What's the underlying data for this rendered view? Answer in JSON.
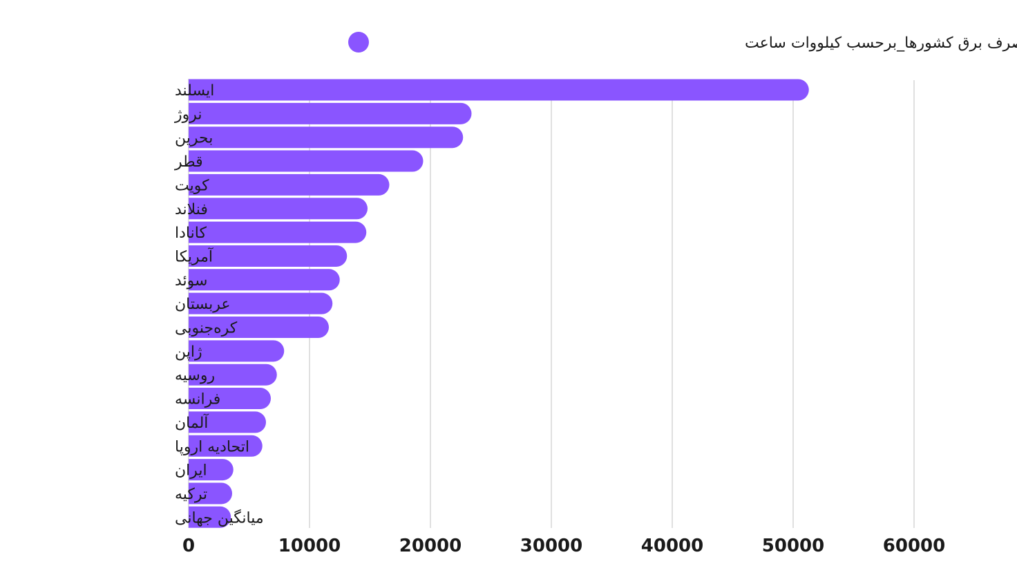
{
  "chart_data": {
    "type": "bar",
    "orientation": "horizontal",
    "categories": [
      "ایسلند",
      "نروژ",
      "بحرین",
      "قطر",
      "کویت",
      "فنلاند",
      "کانادا",
      "آمریکا",
      "سوئد",
      "عربستان",
      "کره‌جنوبی",
      "ژاپن",
      "روسیه",
      "فرانسه",
      "آلمان",
      "اتحادیه اروپا",
      "ایران",
      "ترکیه",
      "میانگین جهانی"
    ],
    "series": [
      {
        "name": "سرانه مصرف برق کشورها_برحسب کیلووات ساعت",
        "color": "#8A55FF",
        "values": [
          51300,
          23400,
          22700,
          19400,
          16600,
          14800,
          14700,
          13100,
          12500,
          11900,
          11600,
          7900,
          7300,
          6800,
          6400,
          6100,
          3700,
          3600,
          3500
        ]
      }
    ],
    "xlim": [
      0,
      60000
    ],
    "xticks": [
      "0",
      "10000",
      "20000",
      "30000",
      "40000",
      "50000",
      "60000"
    ],
    "grid": true,
    "legend_position": "top-center"
  }
}
